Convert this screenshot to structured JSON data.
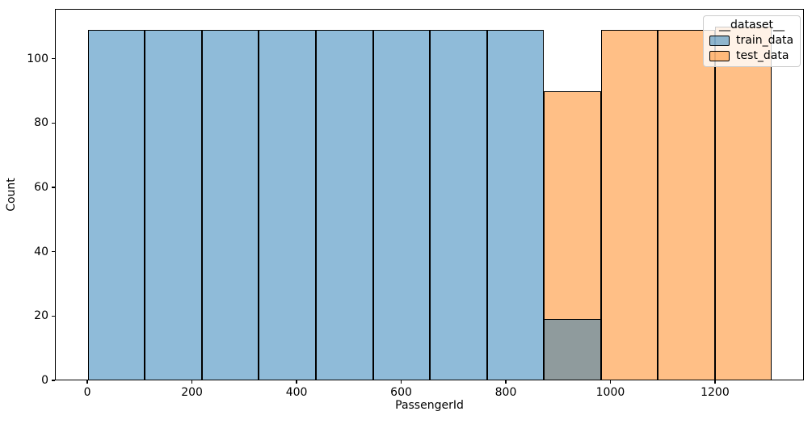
{
  "figure": {
    "background": "#FFFFFF"
  },
  "chart_data": {
    "type": "histogram",
    "title": "",
    "xlabel": "PassengerId",
    "ylabel": "Count",
    "xlim": [
      -62,
      1370
    ],
    "ylim": [
      0,
      115.5
    ],
    "xticks": [
      0,
      200,
      400,
      600,
      800,
      1000,
      1200
    ],
    "yticks": [
      0,
      20,
      40,
      60,
      80,
      100
    ],
    "grid": false,
    "bin_edges": [
      1,
      110,
      219,
      328,
      437,
      546,
      655,
      764,
      873,
      982,
      1091,
      1200,
      1309
    ],
    "series": [
      {
        "name": "train_data",
        "fill": "rgba(31,119,180,0.5)",
        "fill_on_white": "#8FBBD9",
        "counts": [
          109,
          109,
          109,
          109,
          109,
          109,
          109,
          109,
          19,
          0,
          0,
          0
        ]
      },
      {
        "name": "test_data",
        "fill": "rgba(255,127,14,0.5)",
        "fill_on_white": "#FFBF86",
        "counts": [
          0,
          0,
          0,
          0,
          0,
          0,
          0,
          0,
          90,
          109,
          109,
          110
        ]
      }
    ],
    "overlap_color_on_white": "#8F9B9D",
    "edge_color": "#000000",
    "legend": {
      "title": "__dataset__",
      "position": "upper right",
      "entries": [
        {
          "label": "train_data"
        },
        {
          "label": "test_data"
        }
      ]
    }
  }
}
